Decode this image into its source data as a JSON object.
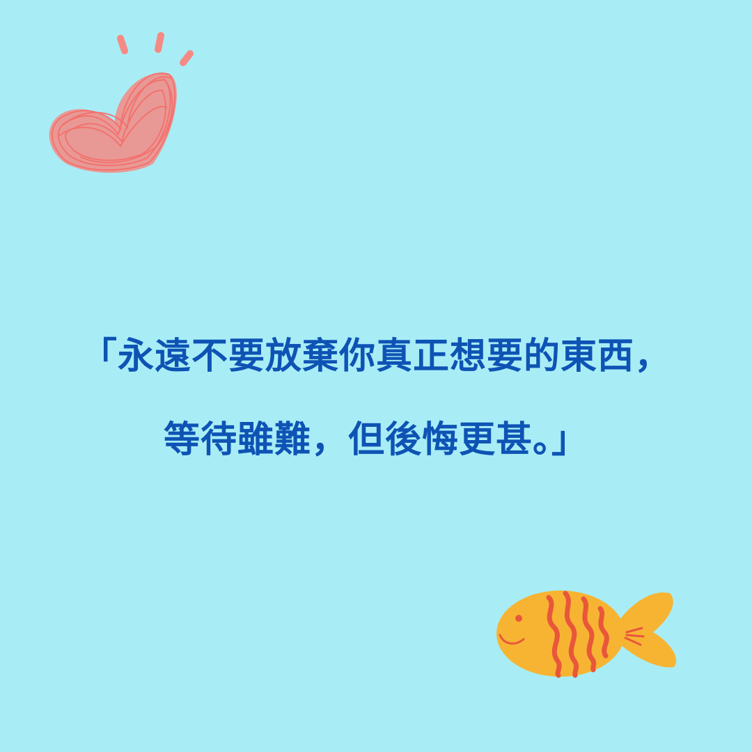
{
  "background_color": "#a8edf6",
  "text_color": "#0e53b4",
  "quote": {
    "line1": "「永遠不要放棄你真正想要的東西，",
    "line2": "等待雖難，但後悔更甚。」"
  },
  "decorations": {
    "top_left": "heart-doodle",
    "bottom_right": "fish-doodle"
  }
}
